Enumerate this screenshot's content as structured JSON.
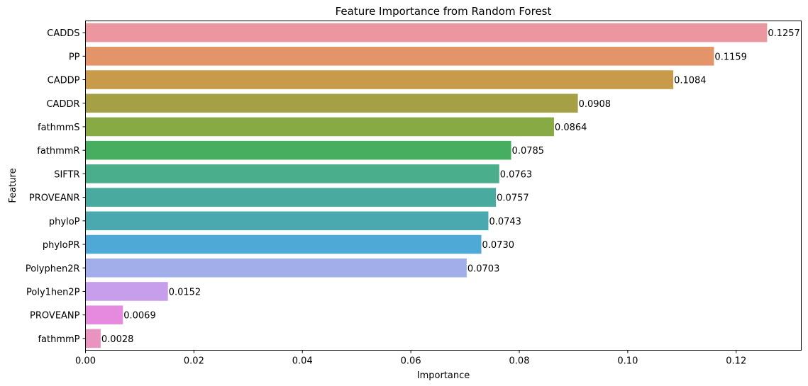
{
  "chart_data": {
    "type": "bar",
    "orientation": "horizontal",
    "title": "Feature Importance from Random Forest",
    "xlabel": "Importance",
    "ylabel": "Feature",
    "xlim": [
      0,
      0.132
    ],
    "xticks": [
      0.0,
      0.02,
      0.04,
      0.06,
      0.08,
      0.1,
      0.12
    ],
    "xtick_labels": [
      "0.00",
      "0.02",
      "0.04",
      "0.06",
      "0.08",
      "0.10",
      "0.12"
    ],
    "grid": false,
    "legend": "none",
    "categories": [
      "CADDS",
      "PP",
      "CADDP",
      "CADDR",
      "fathmmS",
      "fathmmR",
      "SIFTR",
      "PROVEANR",
      "phyloP",
      "phyloPR",
      "Polyphen2R",
      "Poly1hen2P",
      "PROVEANP",
      "fathmmP"
    ],
    "values": [
      0.1257,
      0.1159,
      0.1084,
      0.0908,
      0.0864,
      0.0785,
      0.0763,
      0.0757,
      0.0743,
      0.073,
      0.0703,
      0.0152,
      0.0069,
      0.0028
    ],
    "value_labels": [
      "0.1257",
      "0.1159",
      "0.1084",
      "0.0908",
      "0.0864",
      "0.0785",
      "0.0763",
      "0.0757",
      "0.0743",
      "0.0730",
      "0.0703",
      "0.0152",
      "0.0069",
      "0.0028"
    ],
    "colors": [
      "#ec96a0",
      "#e39469",
      "#c79b4a",
      "#a5a044",
      "#88aa45",
      "#47ad5f",
      "#4aae8d",
      "#49aaa0",
      "#4aa9ae",
      "#4ea9d6",
      "#a1aeea",
      "#c79ee9",
      "#e68ae0",
      "#e993c1"
    ]
  }
}
